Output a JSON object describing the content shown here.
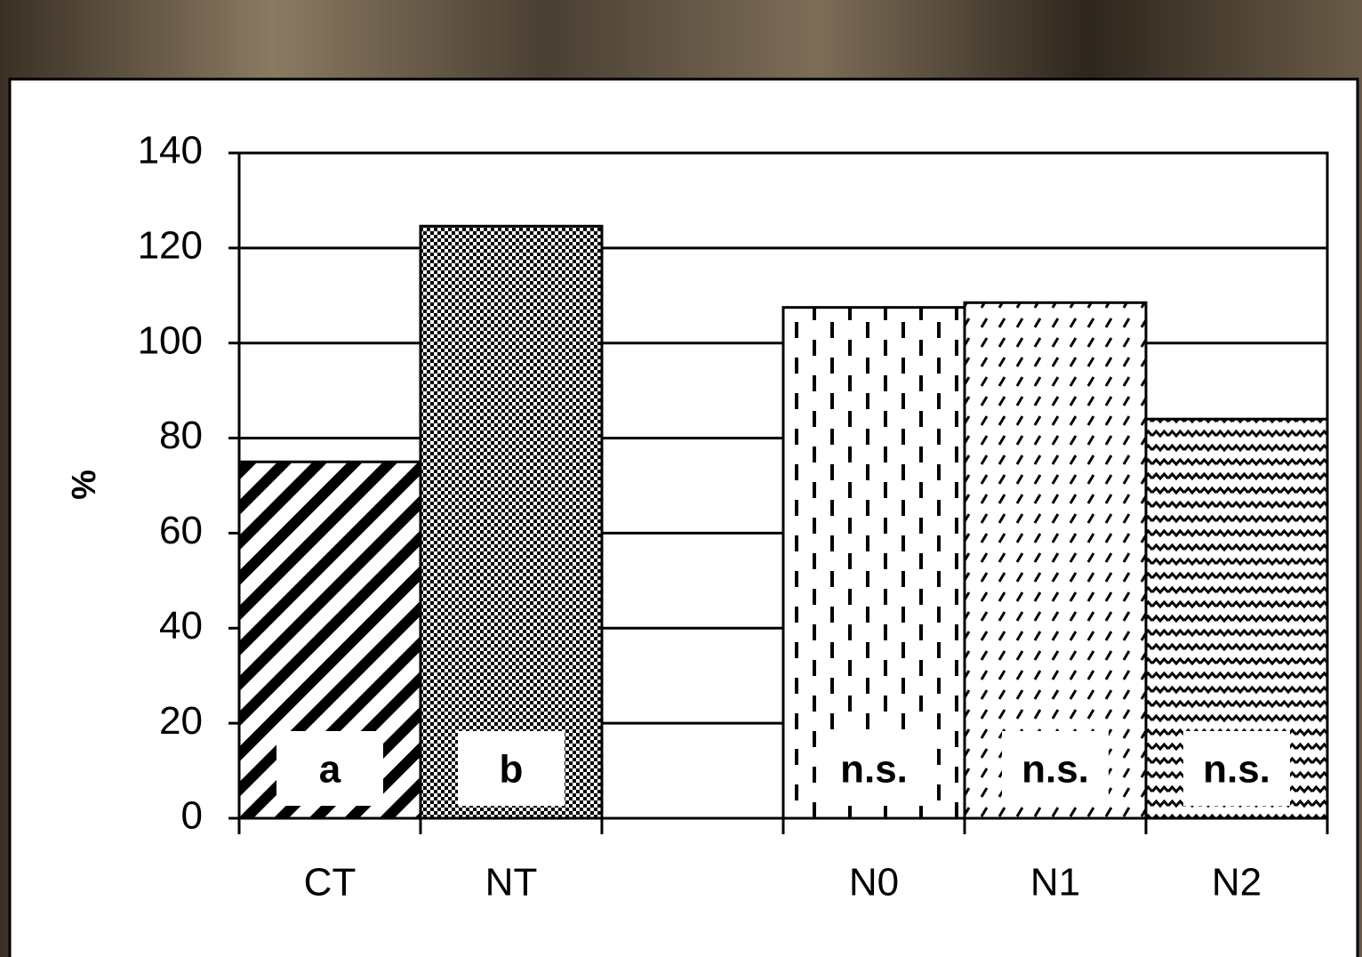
{
  "chart_data": {
    "type": "bar",
    "y_label": "%",
    "categories": [
      "CT",
      "NT",
      null,
      "N0",
      "N1",
      "N2"
    ],
    "values": [
      75,
      124.6,
      null,
      107.5,
      108.5,
      84
    ],
    "annotations": [
      "a",
      "b",
      null,
      "n.s.",
      "n.s.",
      "n.s."
    ],
    "color": "#000000",
    "ylim": [
      0,
      140
    ],
    "yticks": [
      0,
      20,
      40,
      60,
      80,
      100,
      120,
      140
    ],
    "grid": true
  }
}
